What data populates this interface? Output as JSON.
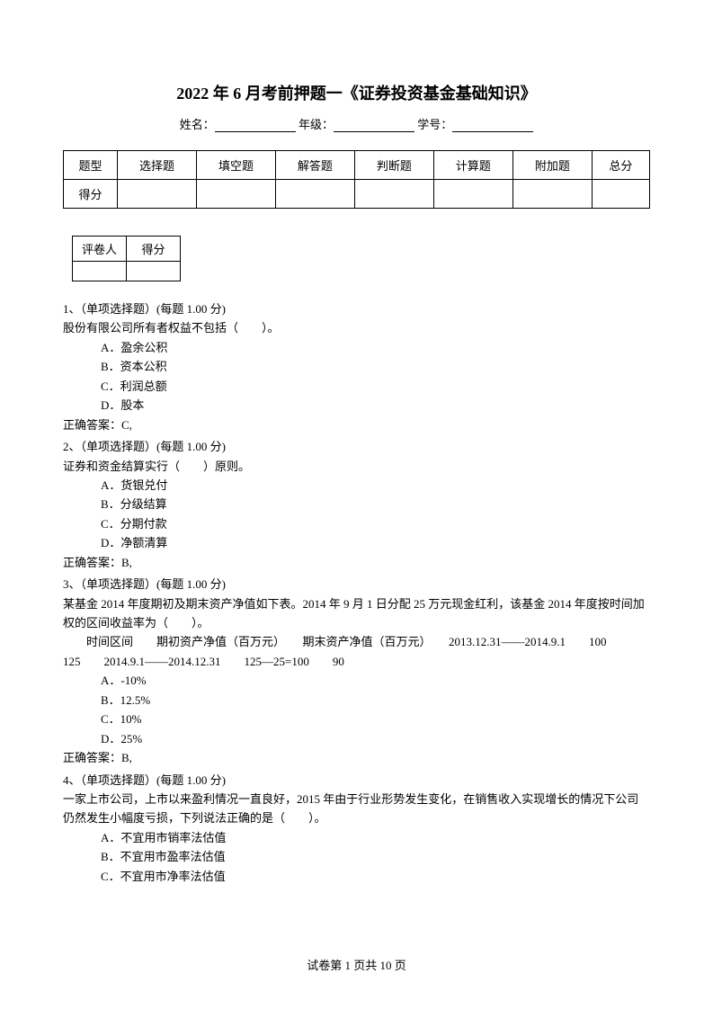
{
  "title": "2022 年 6 月考前押题一《证券投资基金基础知识》",
  "info": {
    "name_label": "姓名：",
    "grade_label": " 年级：",
    "id_label": " 学号："
  },
  "score_table": {
    "row1": [
      "题型",
      "选择题",
      "填空题",
      "解答题",
      "判断题",
      "计算题",
      "附加题",
      "总分"
    ],
    "row2_label": "得分"
  },
  "grader_table": {
    "col1": "评卷人",
    "col2": "得分"
  },
  "questions": [
    {
      "header": "1、（单项选择题）(每题 1.00 分)",
      "stem": "股份有限公司所有者权益不包括（　　）。",
      "options": [
        "A．盈余公积",
        "B．资本公积",
        "C．利润总额",
        "D．股本"
      ],
      "answer": "正确答案：C,"
    },
    {
      "header": "2、（单项选择题）(每题 1.00 分)",
      "stem": "证券和资金结算实行（　　）原则。",
      "options": [
        "A．货银兑付",
        "B．分级结算",
        "C．分期付款",
        "D．净额清算"
      ],
      "answer": "正确答案：B,"
    },
    {
      "header": "3、（单项选择题）(每题 1.00 分)",
      "stem": "某基金 2014 年度期初及期末资产净值如下表。2014 年 9 月 1 日分配 25 万元现金红利，该基金 2014 年度按时间加权的区间收益率为（　　）。",
      "data_line1": "　　时间区间　　期初资产净值（百万元）　　期末资产净值（百万元）　　2013.12.31——2014.9.1　　100",
      "data_line2": "125　　2014.9.1——2014.12.31　　125—25=100　　90",
      "options": [
        "A．-10%",
        "B．12.5%",
        "C．10%",
        "D．25%"
      ],
      "answer": "正确答案：B,"
    },
    {
      "header": "4、（单项选择题）(每题 1.00 分)",
      "stem": "一家上市公司，上市以来盈利情况一直良好，2015 年由于行业形势发生变化，在销售收入实现增长的情况下公司仍然发生小幅度亏损，下列说法正确的是（　　）。",
      "options": [
        "A．不宜用市销率法估值",
        "B．不宜用市盈率法估值",
        "C．不宜用市净率法估值"
      ]
    }
  ],
  "footer": "试卷第 1 页共 10 页"
}
